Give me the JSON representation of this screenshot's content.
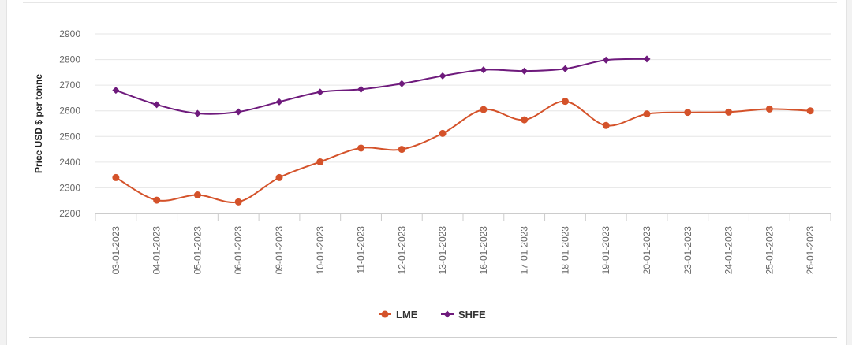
{
  "chart_data": {
    "type": "line",
    "title": "",
    "xlabel": "",
    "ylabel": "Price USD $ per tonne",
    "ylim": [
      2200,
      2900
    ],
    "yticks": [
      2200,
      2300,
      2400,
      2500,
      2600,
      2700,
      2800,
      2900
    ],
    "grid": true,
    "legend_position": "bottom-center",
    "categories": [
      "03-01-2023",
      "04-01-2023",
      "05-01-2023",
      "06-01-2023",
      "09-01-2023",
      "10-01-2023",
      "11-01-2023",
      "12-01-2023",
      "13-01-2023",
      "16-01-2023",
      "17-01-2023",
      "18-01-2023",
      "19-01-2023",
      "20-01-2023",
      "23-01-2023",
      "24-01-2023",
      "25-01-2023",
      "26-01-2023"
    ],
    "series": [
      {
        "name": "LME",
        "color": "#d4522a",
        "marker": "circle",
        "values": [
          2340,
          2252,
          2272,
          2245,
          2340,
          2401,
          2455,
          2450,
          2512,
          2605,
          2565,
          2637,
          2543,
          2588,
          2594,
          2595,
          2607,
          2600
        ]
      },
      {
        "name": "SHFE",
        "color": "#6e1a7c",
        "marker": "diamond",
        "values": [
          2680,
          2624,
          2590,
          2596,
          2635,
          2673,
          2684,
          2706,
          2736,
          2760,
          2755,
          2764,
          2798,
          2802,
          null,
          null,
          null,
          null
        ]
      }
    ]
  }
}
